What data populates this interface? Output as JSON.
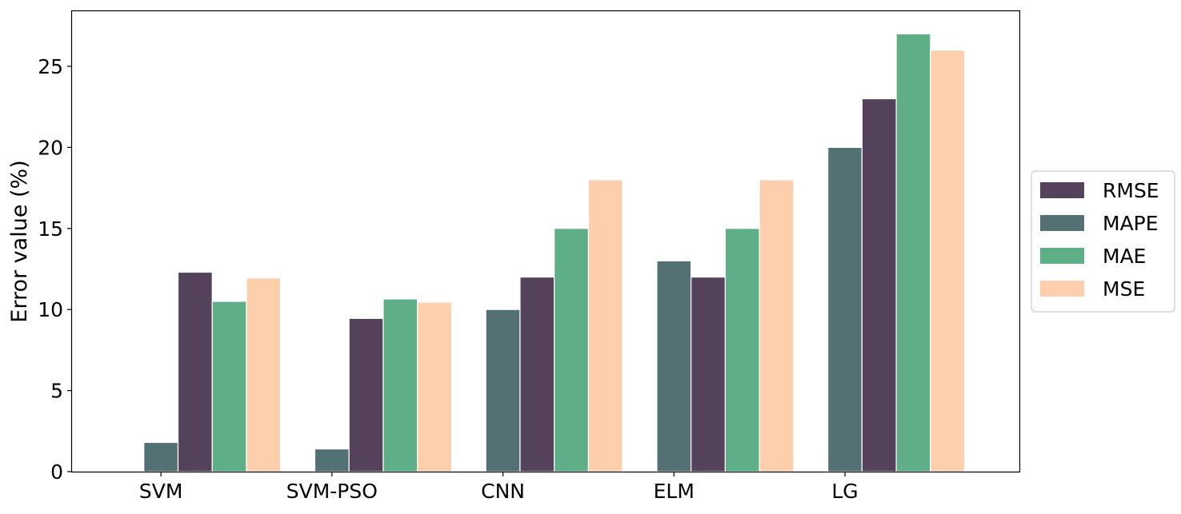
{
  "chart_data": {
    "type": "bar",
    "title": "",
    "xlabel": "",
    "ylabel": "Error value (%)",
    "ylim": [
      0,
      28.4
    ],
    "yticks": [
      0,
      5,
      10,
      15,
      20,
      25
    ],
    "grid": false,
    "legend_position": "right",
    "categories": [
      "SVM",
      "SVM-PSO",
      "CNN",
      "ELM",
      "LG"
    ],
    "series": [
      {
        "name": "MAPE",
        "color": "#537173",
        "values": [
          1.8,
          1.4,
          10,
          13,
          20
        ]
      },
      {
        "name": "RMSE",
        "color": "#54425a",
        "values": [
          12.3,
          9.45,
          12,
          12,
          23
        ]
      },
      {
        "name": "MAE",
        "color": "#5eae87",
        "values": [
          10.5,
          10.65,
          15,
          15,
          27
        ]
      },
      {
        "name": "MSE",
        "color": "#fdcfac",
        "values": [
          11.95,
          10.45,
          18,
          18,
          26
        ]
      }
    ],
    "legend_order": [
      "RMSE",
      "MAPE",
      "MAE",
      "MSE"
    ]
  }
}
